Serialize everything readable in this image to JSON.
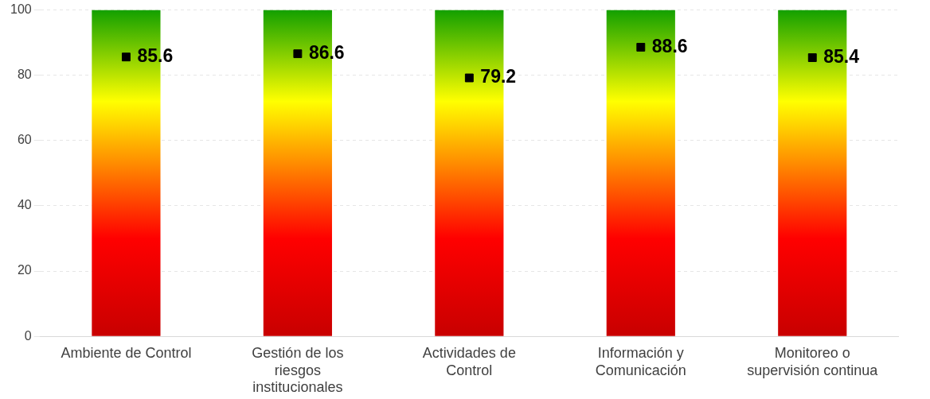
{
  "chart_data": {
    "type": "bar",
    "categories": [
      "Ambiente de Control",
      "Gestión de los riesgos institucionales",
      "Actividades de Control",
      "Información y Comunicación",
      "Monitoreo o supervisión continua"
    ],
    "series": [
      {
        "color": "#ffff00",
        "values": [
          100,
          100,
          100,
          100,
          100
        ]
      },
      {
        "type": "scatter",
        "color": "#000000",
        "x": [
          "Ambiente de Control",
          "Gestión de los riesgos institucionales",
          "Actividades de Control",
          "Información y Comunicación",
          "Monitoreo o supervisión continua"
        ],
        "values": [
          85.6,
          86.6,
          79.2,
          88.6,
          85.4
        ],
        "value_labels": [
          "85.6",
          "86.6",
          "79.2",
          "88.6",
          "85.4"
        ],
        "marker": "square"
      }
    ],
    "ylim": [
      0,
      100
    ],
    "yticks": [
      0,
      20,
      40,
      60,
      80,
      100
    ],
    "grid": "y",
    "legend": false
  }
}
